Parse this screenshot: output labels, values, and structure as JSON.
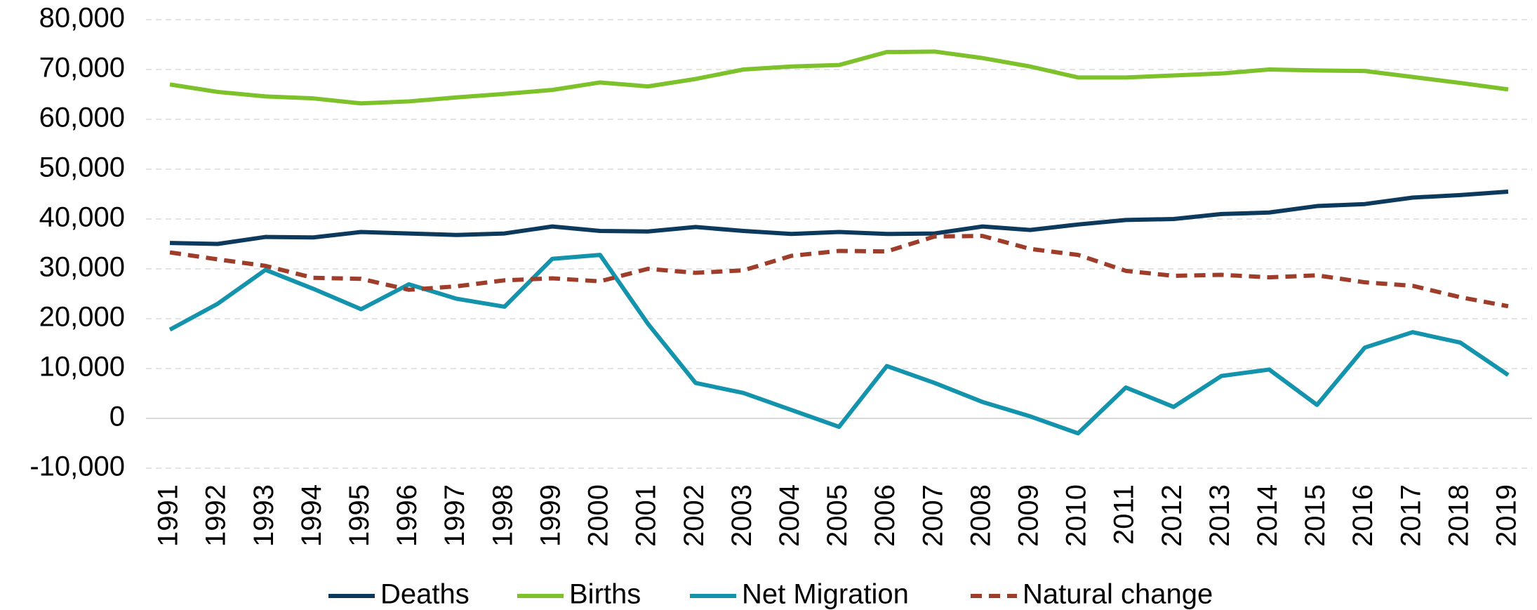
{
  "chart_data": {
    "type": "line",
    "categories": [
      "1991",
      "1992",
      "1993",
      "1994",
      "1995",
      "1996",
      "1997",
      "1998",
      "1999",
      "2000",
      "2001",
      "2002",
      "2003",
      "2004",
      "2005",
      "2006",
      "2007",
      "2008",
      "2009",
      "2010",
      "2011",
      "2012",
      "2013",
      "2014",
      "2015",
      "2016",
      "2017",
      "2018",
      "2019"
    ],
    "series": [
      {
        "name": "Deaths",
        "color": "#0d3a5c",
        "values": [
          35200,
          35000,
          36400,
          36300,
          37400,
          37100,
          36800,
          37100,
          38500,
          37600,
          37500,
          38400,
          37600,
          37000,
          37400,
          37000,
          37100,
          38500,
          37800,
          38900,
          39800,
          40000,
          41000,
          41300,
          42600,
          43000,
          44300,
          44800,
          45500
        ]
      },
      {
        "name": "Births",
        "color": "#7dc12b",
        "values": [
          67000,
          65500,
          64600,
          64200,
          63200,
          63600,
          64400,
          65100,
          65900,
          67400,
          66600,
          68100,
          70000,
          70600,
          70900,
          73500,
          73600,
          72300,
          70600,
          68400,
          68400,
          68800,
          69200,
          70000,
          69800,
          69700,
          68500,
          67300,
          66000
        ]
      },
      {
        "name": "Net Migration",
        "color": "#1493ad",
        "values": [
          17800,
          23000,
          29800,
          26000,
          21900,
          26900,
          24000,
          22400,
          32000,
          32800,
          19000,
          7100,
          5100,
          1700,
          -1700,
          10500,
          7100,
          3300,
          400,
          -3000,
          6200,
          2300,
          8500,
          9800,
          2700,
          14200,
          17300,
          15200,
          8700
        ]
      },
      {
        "name": "Natural change",
        "color": "#9e3d2a",
        "dashed": true,
        "values": [
          33300,
          31900,
          30600,
          28200,
          28000,
          25800,
          26500,
          27700,
          28100,
          27500,
          30000,
          29200,
          29700,
          32600,
          33600,
          33500,
          36500,
          36600,
          34000,
          32800,
          29600,
          28600,
          28800,
          28300,
          28700,
          27300,
          26600,
          24300,
          22500
        ]
      }
    ],
    "ylim": [
      -10000,
      80000
    ],
    "yticks": [
      {
        "value": -10000,
        "label": "-10,000"
      },
      0,
      {
        "value": 10000,
        "label": "10,000"
      },
      {
        "value": 20000,
        "label": "20,000"
      },
      {
        "value": 30000,
        "label": "30,000"
      },
      {
        "value": 40000,
        "label": "40,000"
      },
      {
        "value": 50000,
        "label": "50,000"
      },
      {
        "value": 60000,
        "label": "60,000"
      },
      {
        "value": 70000,
        "label": "70,000"
      },
      {
        "value": 80000,
        "label": "80,000"
      }
    ],
    "grid": true,
    "legend": "bottom"
  }
}
